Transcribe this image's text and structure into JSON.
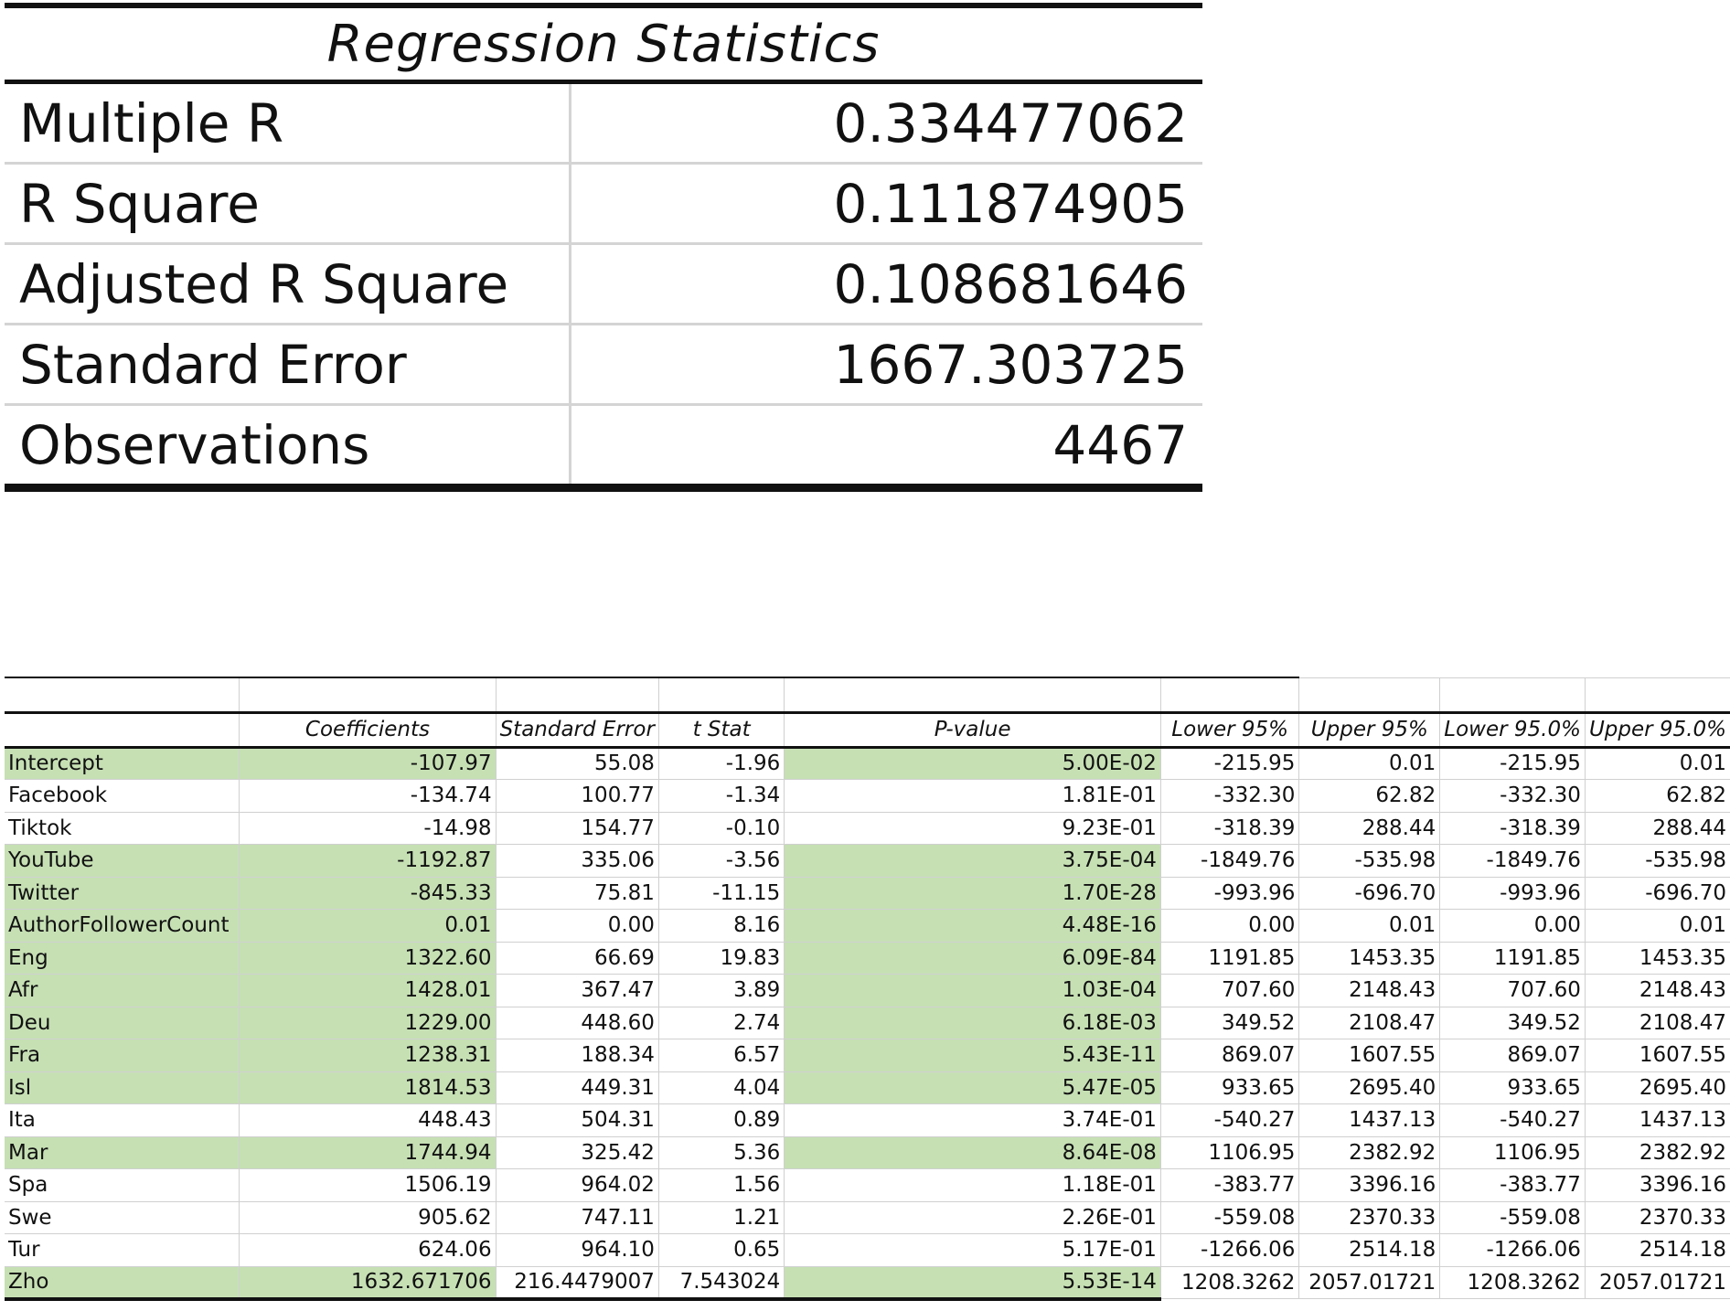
{
  "regression_statistics": {
    "title": "Regression Statistics",
    "rows": [
      {
        "label": "Multiple R",
        "value": "0.334477062"
      },
      {
        "label": "R Square",
        "value": "0.111874905"
      },
      {
        "label": "Adjusted R Square",
        "value": "0.108681646"
      },
      {
        "label": "Standard Error",
        "value": "1667.303725"
      },
      {
        "label": "Observations",
        "value": "4467"
      }
    ]
  },
  "coefficients": {
    "headers": [
      "",
      "Coefficients",
      "Standard Error",
      "t Stat",
      "P-value",
      "Lower 95%",
      "Upper 95%",
      "Lower 95.0%",
      "Upper 95.0%"
    ],
    "highlight_color": "#c6e0b4",
    "rows": [
      {
        "name": "Intercept",
        "coef": "-107.97",
        "se": "55.08",
        "t": "-1.96",
        "p": "5.00E-02",
        "l95": "-215.95",
        "u95": "0.01",
        "l950": "-215.95",
        "u950": "0.01",
        "significant": true
      },
      {
        "name": "Facebook",
        "coef": "-134.74",
        "se": "100.77",
        "t": "-1.34",
        "p": "1.81E-01",
        "l95": "-332.30",
        "u95": "62.82",
        "l950": "-332.30",
        "u950": "62.82",
        "significant": false
      },
      {
        "name": "Tiktok",
        "coef": "-14.98",
        "se": "154.77",
        "t": "-0.10",
        "p": "9.23E-01",
        "l95": "-318.39",
        "u95": "288.44",
        "l950": "-318.39",
        "u950": "288.44",
        "significant": false
      },
      {
        "name": "YouTube",
        "coef": "-1192.87",
        "se": "335.06",
        "t": "-3.56",
        "p": "3.75E-04",
        "l95": "-1849.76",
        "u95": "-535.98",
        "l950": "-1849.76",
        "u950": "-535.98",
        "significant": true
      },
      {
        "name": "Twitter",
        "coef": "-845.33",
        "se": "75.81",
        "t": "-11.15",
        "p": "1.70E-28",
        "l95": "-993.96",
        "u95": "-696.70",
        "l950": "-993.96",
        "u950": "-696.70",
        "significant": true
      },
      {
        "name": "AuthorFollowerCount",
        "coef": "0.01",
        "se": "0.00",
        "t": "8.16",
        "p": "4.48E-16",
        "l95": "0.00",
        "u95": "0.01",
        "l950": "0.00",
        "u950": "0.01",
        "significant": true
      },
      {
        "name": "Eng",
        "coef": "1322.60",
        "se": "66.69",
        "t": "19.83",
        "p": "6.09E-84",
        "l95": "1191.85",
        "u95": "1453.35",
        "l950": "1191.85",
        "u950": "1453.35",
        "significant": true
      },
      {
        "name": "Afr",
        "coef": "1428.01",
        "se": "367.47",
        "t": "3.89",
        "p": "1.03E-04",
        "l95": "707.60",
        "u95": "2148.43",
        "l950": "707.60",
        "u950": "2148.43",
        "significant": true
      },
      {
        "name": "Deu",
        "coef": "1229.00",
        "se": "448.60",
        "t": "2.74",
        "p": "6.18E-03",
        "l95": "349.52",
        "u95": "2108.47",
        "l950": "349.52",
        "u950": "2108.47",
        "significant": true
      },
      {
        "name": "Fra",
        "coef": "1238.31",
        "se": "188.34",
        "t": "6.57",
        "p": "5.43E-11",
        "l95": "869.07",
        "u95": "1607.55",
        "l950": "869.07",
        "u950": "1607.55",
        "significant": true
      },
      {
        "name": "Isl",
        "coef": "1814.53",
        "se": "449.31",
        "t": "4.04",
        "p": "5.47E-05",
        "l95": "933.65",
        "u95": "2695.40",
        "l950": "933.65",
        "u950": "2695.40",
        "significant": true
      },
      {
        "name": "Ita",
        "coef": "448.43",
        "se": "504.31",
        "t": "0.89",
        "p": "3.74E-01",
        "l95": "-540.27",
        "u95": "1437.13",
        "l950": "-540.27",
        "u950": "1437.13",
        "significant": false
      },
      {
        "name": "Mar",
        "coef": "1744.94",
        "se": "325.42",
        "t": "5.36",
        "p": "8.64E-08",
        "l95": "1106.95",
        "u95": "2382.92",
        "l950": "1106.95",
        "u950": "2382.92",
        "significant": true
      },
      {
        "name": "Spa",
        "coef": "1506.19",
        "se": "964.02",
        "t": "1.56",
        "p": "1.18E-01",
        "l95": "-383.77",
        "u95": "3396.16",
        "l950": "-383.77",
        "u950": "3396.16",
        "significant": false
      },
      {
        "name": "Swe",
        "coef": "905.62",
        "se": "747.11",
        "t": "1.21",
        "p": "2.26E-01",
        "l95": "-559.08",
        "u95": "2370.33",
        "l950": "-559.08",
        "u950": "2370.33",
        "significant": false
      },
      {
        "name": "Tur",
        "coef": "624.06",
        "se": "964.10",
        "t": "0.65",
        "p": "5.17E-01",
        "l95": "-1266.06",
        "u95": "2514.18",
        "l950": "-1266.06",
        "u950": "2514.18",
        "significant": false
      },
      {
        "name": "Zho",
        "coef": "1632.671706",
        "se": "216.4479007",
        "t": "7.543024",
        "p": "5.53E-14",
        "l95": "1208.3262",
        "u95": "2057.01721",
        "l950": "1208.3262",
        "u950": "2057.01721",
        "significant": true
      }
    ]
  }
}
